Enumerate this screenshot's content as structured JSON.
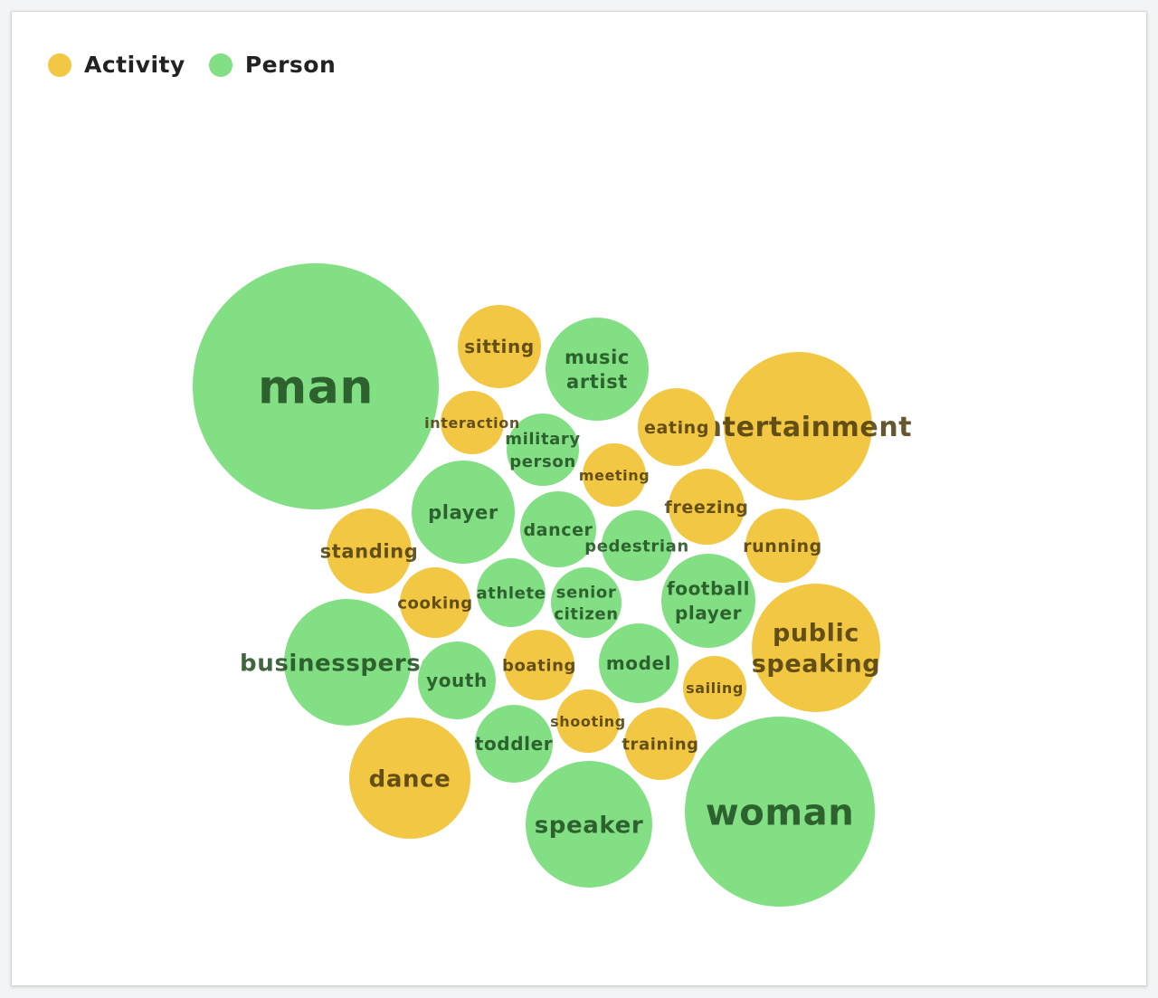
{
  "legend": [
    {
      "label": "Activity",
      "color": "#f2c744"
    },
    {
      "label": "Person",
      "color": "#82df84"
    }
  ],
  "chart_data": {
    "type": "bubble",
    "categories": [
      "Activity",
      "Person"
    ],
    "colors": {
      "Activity": "#f2c744",
      "Person": "#82df84"
    },
    "legend_position": "top-left",
    "bubbles": [
      {
        "label": "man",
        "category": "Person"
      },
      {
        "label": "woman",
        "category": "Person"
      },
      {
        "label": "entertainment",
        "category": "Activity"
      },
      {
        "label": "public speaking",
        "category": "Activity"
      },
      {
        "label": "speaker",
        "category": "Person"
      },
      {
        "label": "businessperson",
        "category": "Person"
      },
      {
        "label": "dance",
        "category": "Activity"
      },
      {
        "label": "music artist",
        "category": "Person"
      },
      {
        "label": "player",
        "category": "Person"
      },
      {
        "label": "football player",
        "category": "Person"
      },
      {
        "label": "sitting",
        "category": "Activity"
      },
      {
        "label": "standing",
        "category": "Activity"
      },
      {
        "label": "model",
        "category": "Person"
      },
      {
        "label": "eating",
        "category": "Activity"
      },
      {
        "label": "toddler",
        "category": "Person"
      },
      {
        "label": "youth",
        "category": "Person"
      },
      {
        "label": "freezing",
        "category": "Activity"
      },
      {
        "label": "dancer",
        "category": "Person"
      },
      {
        "label": "running",
        "category": "Activity"
      },
      {
        "label": "senior citizen",
        "category": "Person"
      },
      {
        "label": "military person",
        "category": "Person"
      },
      {
        "label": "training",
        "category": "Activity"
      },
      {
        "label": "boating",
        "category": "Activity"
      },
      {
        "label": "cooking",
        "category": "Activity"
      },
      {
        "label": "athlete",
        "category": "Person"
      },
      {
        "label": "pedestrian",
        "category": "Person"
      },
      {
        "label": "interaction",
        "category": "Activity"
      },
      {
        "label": "meeting",
        "category": "Activity"
      },
      {
        "label": "sailing",
        "category": "Activity"
      },
      {
        "label": "shooting",
        "category": "Activity"
      }
    ]
  }
}
